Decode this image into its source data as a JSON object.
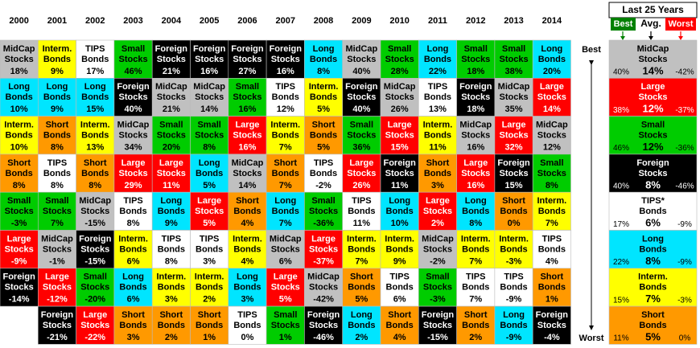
{
  "years": [
    "2000",
    "2001",
    "2002",
    "2003",
    "2004",
    "2005",
    "2006",
    "2007",
    "2008",
    "2009",
    "2010",
    "2011",
    "2012",
    "2013",
    "2014"
  ],
  "columns": [
    [
      {
        "t": [
          "MidCap",
          "Stocks"
        ],
        "r": "18%",
        "c": "#c0c0c0"
      },
      {
        "t": [
          "Long",
          "Bonds"
        ],
        "r": "10%",
        "c": "#00e5ff"
      },
      {
        "t": [
          "Interm.",
          "Bonds"
        ],
        "r": "10%",
        "c": "#ffff00"
      },
      {
        "t": [
          "Short",
          "Bonds"
        ],
        "r": "8%",
        "c": "#ff9900"
      },
      {
        "t": [
          "Small",
          "Stocks"
        ],
        "r": "-3%",
        "c": "#00cc00"
      },
      {
        "t": [
          "Large",
          "Stocks"
        ],
        "r": "-9%",
        "c": "#ff0000"
      },
      {
        "t": [
          "Foreign",
          "Stocks"
        ],
        "r": "-14%",
        "c": "#000000"
      },
      null
    ],
    [
      {
        "t": [
          "Interm.",
          "Bonds"
        ],
        "r": "9%",
        "c": "#ffff00"
      },
      {
        "t": [
          "Long",
          "Bonds"
        ],
        "r": "9%",
        "c": "#00e5ff"
      },
      {
        "t": [
          "Short",
          "Bonds"
        ],
        "r": "8%",
        "c": "#ff9900"
      },
      {
        "t": [
          "TIPS",
          "Bonds"
        ],
        "r": "8%",
        "c": "#ffffff"
      },
      {
        "t": [
          "Small",
          "Stocks"
        ],
        "r": "7%",
        "c": "#00cc00"
      },
      {
        "t": [
          "MidCap",
          "Stocks"
        ],
        "r": "-1%",
        "c": "#c0c0c0"
      },
      {
        "t": [
          "Large",
          "Stocks"
        ],
        "r": "-12%",
        "c": "#ff0000"
      },
      {
        "t": [
          "Foreign",
          "Stocks"
        ],
        "r": "-21%",
        "c": "#000000"
      }
    ],
    [
      {
        "t": [
          "TIPS",
          "Bonds"
        ],
        "r": "17%",
        "c": "#ffffff"
      },
      {
        "t": [
          "Long",
          "Bonds"
        ],
        "r": "15%",
        "c": "#00e5ff"
      },
      {
        "t": [
          "Interm.",
          "Bonds"
        ],
        "r": "13%",
        "c": "#ffff00"
      },
      {
        "t": [
          "Short",
          "Bonds"
        ],
        "r": "8%",
        "c": "#ff9900"
      },
      {
        "t": [
          "MidCap",
          "Stocks"
        ],
        "r": "-15%",
        "c": "#c0c0c0"
      },
      {
        "t": [
          "Foreign",
          "Stocks"
        ],
        "r": "-15%",
        "c": "#000000"
      },
      {
        "t": [
          "Small",
          "Stocks"
        ],
        "r": "-20%",
        "c": "#00cc00"
      },
      {
        "t": [
          "Large",
          "Stocks"
        ],
        "r": "-22%",
        "c": "#ff0000"
      }
    ],
    [
      {
        "t": [
          "Small",
          "Stocks"
        ],
        "r": "46%",
        "c": "#00cc00"
      },
      {
        "t": [
          "Foreign",
          "Stocks"
        ],
        "r": "40%",
        "c": "#000000"
      },
      {
        "t": [
          "MidCap",
          "Stocks"
        ],
        "r": "34%",
        "c": "#c0c0c0"
      },
      {
        "t": [
          "Large",
          "Stocks"
        ],
        "r": "29%",
        "c": "#ff0000"
      },
      {
        "t": [
          "TIPS",
          "Bonds"
        ],
        "r": "8%",
        "c": "#ffffff"
      },
      {
        "t": [
          "Interm.",
          "Bonds"
        ],
        "r": "6%",
        "c": "#ffff00"
      },
      {
        "t": [
          "Long",
          "Bonds"
        ],
        "r": "6%",
        "c": "#00e5ff"
      },
      {
        "t": [
          "Short",
          "Bonds"
        ],
        "r": "3%",
        "c": "#ff9900"
      }
    ],
    [
      {
        "t": [
          "Foreign",
          "Stocks"
        ],
        "r": "21%",
        "c": "#000000"
      },
      {
        "t": [
          "MidCap",
          "Stocks"
        ],
        "r": "21%",
        "c": "#c0c0c0"
      },
      {
        "t": [
          "Small",
          "Stocks"
        ],
        "r": "20%",
        "c": "#00cc00"
      },
      {
        "t": [
          "Large",
          "Stocks"
        ],
        "r": "11%",
        "c": "#ff0000"
      },
      {
        "t": [
          "Long",
          "Bonds"
        ],
        "r": "9%",
        "c": "#00e5ff"
      },
      {
        "t": [
          "TIPS",
          "Bonds"
        ],
        "r": "8%",
        "c": "#ffffff"
      },
      {
        "t": [
          "Interm.",
          "Bonds"
        ],
        "r": "3%",
        "c": "#ffff00"
      },
      {
        "t": [
          "Short",
          "Bonds"
        ],
        "r": "2%",
        "c": "#ff9900"
      }
    ],
    [
      {
        "t": [
          "Foreign",
          "Stocks"
        ],
        "r": "16%",
        "c": "#000000"
      },
      {
        "t": [
          "MidCap",
          "Stocks"
        ],
        "r": "14%",
        "c": "#c0c0c0"
      },
      {
        "t": [
          "Small",
          "Stocks"
        ],
        "r": "8%",
        "c": "#00cc00"
      },
      {
        "t": [
          "Long",
          "Bonds"
        ],
        "r": "5%",
        "c": "#00e5ff"
      },
      {
        "t": [
          "Large",
          "Stocks"
        ],
        "r": "5%",
        "c": "#ff0000"
      },
      {
        "t": [
          "TIPS",
          "Bonds"
        ],
        "r": "3%",
        "c": "#ffffff"
      },
      {
        "t": [
          "Interm.",
          "Bonds"
        ],
        "r": "2%",
        "c": "#ffff00"
      },
      {
        "t": [
          "Short",
          "Bonds"
        ],
        "r": "1%",
        "c": "#ff9900"
      }
    ],
    [
      {
        "t": [
          "Foreign",
          "Stocks"
        ],
        "r": "27%",
        "c": "#000000"
      },
      {
        "t": [
          "Small",
          "Stocks"
        ],
        "r": "16%",
        "c": "#00cc00"
      },
      {
        "t": [
          "Large",
          "Stocks"
        ],
        "r": "16%",
        "c": "#ff0000"
      },
      {
        "t": [
          "MidCap",
          "Stocks"
        ],
        "r": "14%",
        "c": "#c0c0c0"
      },
      {
        "t": [
          "Short",
          "Bonds"
        ],
        "r": "4%",
        "c": "#ff9900"
      },
      {
        "t": [
          "Interm.",
          "Bonds"
        ],
        "r": "4%",
        "c": "#ffff00"
      },
      {
        "t": [
          "Long",
          "Bonds"
        ],
        "r": "3%",
        "c": "#00e5ff"
      },
      {
        "t": [
          "TIPS",
          "Bonds"
        ],
        "r": "0%",
        "c": "#ffffff"
      }
    ],
    [
      {
        "t": [
          "Foreign",
          "Stocks"
        ],
        "r": "16%",
        "c": "#000000"
      },
      {
        "t": [
          "TIPS",
          "Bonds"
        ],
        "r": "12%",
        "c": "#ffffff"
      },
      {
        "t": [
          "Interm.",
          "Bonds"
        ],
        "r": "7%",
        "c": "#ffff00"
      },
      {
        "t": [
          "Short",
          "Bonds"
        ],
        "r": "7%",
        "c": "#ff9900"
      },
      {
        "t": [
          "Long",
          "Bonds"
        ],
        "r": "7%",
        "c": "#00e5ff"
      },
      {
        "t": [
          "MidCap",
          "Stocks"
        ],
        "r": "6%",
        "c": "#c0c0c0"
      },
      {
        "t": [
          "Large",
          "Stocks"
        ],
        "r": "5%",
        "c": "#ff0000"
      },
      {
        "t": [
          "Small",
          "Stocks"
        ],
        "r": "1%",
        "c": "#00cc00"
      }
    ],
    [
      {
        "t": [
          "Long",
          "Bonds"
        ],
        "r": "8%",
        "c": "#00e5ff"
      },
      {
        "t": [
          "Interm.",
          "Bonds"
        ],
        "r": "5%",
        "c": "#ffff00"
      },
      {
        "t": [
          "Short",
          "Bonds"
        ],
        "r": "5%",
        "c": "#ff9900"
      },
      {
        "t": [
          "TIPS",
          "Bonds"
        ],
        "r": "-2%",
        "c": "#ffffff"
      },
      {
        "t": [
          "Small",
          "Stocks"
        ],
        "r": "-36%",
        "c": "#00cc00"
      },
      {
        "t": [
          "Large",
          "Stocks"
        ],
        "r": "-37%",
        "c": "#ff0000"
      },
      {
        "t": [
          "MidCap",
          "Stocks"
        ],
        "r": "-42%",
        "c": "#c0c0c0"
      },
      {
        "t": [
          "Foreign",
          "Stocks"
        ],
        "r": "-46%",
        "c": "#000000"
      }
    ],
    [
      {
        "t": [
          "MidCap",
          "Stocks"
        ],
        "r": "40%",
        "c": "#c0c0c0"
      },
      {
        "t": [
          "Foreign",
          "Stocks"
        ],
        "r": "40%",
        "c": "#000000"
      },
      {
        "t": [
          "Small",
          "Stocks"
        ],
        "r": "36%",
        "c": "#00cc00"
      },
      {
        "t": [
          "Large",
          "Stocks"
        ],
        "r": "26%",
        "c": "#ff0000"
      },
      {
        "t": [
          "TIPS",
          "Bonds"
        ],
        "r": "11%",
        "c": "#ffffff"
      },
      {
        "t": [
          "Interm.",
          "Bonds"
        ],
        "r": "7%",
        "c": "#ffff00"
      },
      {
        "t": [
          "Short",
          "Bonds"
        ],
        "r": "5%",
        "c": "#ff9900"
      },
      {
        "t": [
          "Long",
          "Bonds"
        ],
        "r": "2%",
        "c": "#00e5ff"
      }
    ],
    [
      {
        "t": [
          "Small",
          "Stocks"
        ],
        "r": "28%",
        "c": "#00cc00"
      },
      {
        "t": [
          "MidCap",
          "Stocks"
        ],
        "r": "26%",
        "c": "#c0c0c0"
      },
      {
        "t": [
          "Large",
          "Stocks"
        ],
        "r": "15%",
        "c": "#ff0000"
      },
      {
        "t": [
          "Foreign",
          "Stocks"
        ],
        "r": "11%",
        "c": "#000000"
      },
      {
        "t": [
          "Long",
          "Bonds"
        ],
        "r": "10%",
        "c": "#00e5ff"
      },
      {
        "t": [
          "Interm.",
          "Bonds"
        ],
        "r": "9%",
        "c": "#ffff00"
      },
      {
        "t": [
          "TIPS",
          "Bonds"
        ],
        "r": "6%",
        "c": "#ffffff"
      },
      {
        "t": [
          "Short",
          "Bonds"
        ],
        "r": "4%",
        "c": "#ff9900"
      }
    ],
    [
      {
        "t": [
          "Long",
          "Bonds"
        ],
        "r": "22%",
        "c": "#00e5ff"
      },
      {
        "t": [
          "TIPS",
          "Bonds"
        ],
        "r": "13%",
        "c": "#ffffff"
      },
      {
        "t": [
          "Interm.",
          "Bonds"
        ],
        "r": "11%",
        "c": "#ffff00"
      },
      {
        "t": [
          "Short",
          "Bonds"
        ],
        "r": "3%",
        "c": "#ff9900"
      },
      {
        "t": [
          "Large",
          "Stocks"
        ],
        "r": "2%",
        "c": "#ff0000"
      },
      {
        "t": [
          "MidCap",
          "Stocks"
        ],
        "r": "-2%",
        "c": "#c0c0c0"
      },
      {
        "t": [
          "Small",
          "Stocks"
        ],
        "r": "-3%",
        "c": "#00cc00"
      },
      {
        "t": [
          "Foreign",
          "Stocks"
        ],
        "r": "-15%",
        "c": "#000000"
      }
    ],
    [
      {
        "t": [
          "Small",
          "Stocks"
        ],
        "r": "18%",
        "c": "#00cc00"
      },
      {
        "t": [
          "Foreign",
          "Stocks"
        ],
        "r": "18%",
        "c": "#000000"
      },
      {
        "t": [
          "MidCap",
          "Stocks"
        ],
        "r": "16%",
        "c": "#c0c0c0"
      },
      {
        "t": [
          "Large",
          "Stocks"
        ],
        "r": "16%",
        "c": "#ff0000"
      },
      {
        "t": [
          "Long",
          "Bonds"
        ],
        "r": "8%",
        "c": "#00e5ff"
      },
      {
        "t": [
          "Interm.",
          "Bonds"
        ],
        "r": "7%",
        "c": "#ffff00"
      },
      {
        "t": [
          "TIPS",
          "Bonds"
        ],
        "r": "7%",
        "c": "#ffffff"
      },
      {
        "t": [
          "Short",
          "Bonds"
        ],
        "r": "2%",
        "c": "#ff9900"
      }
    ],
    [
      {
        "t": [
          "Small",
          "Stocks"
        ],
        "r": "38%",
        "c": "#00cc00"
      },
      {
        "t": [
          "MidCap",
          "Stocks"
        ],
        "r": "35%",
        "c": "#c0c0c0"
      },
      {
        "t": [
          "Large",
          "Stocks"
        ],
        "r": "32%",
        "c": "#ff0000"
      },
      {
        "t": [
          "Foreign",
          "Stocks"
        ],
        "r": "15%",
        "c": "#000000"
      },
      {
        "t": [
          "Short",
          "Bonds"
        ],
        "r": "0%",
        "c": "#ff9900"
      },
      {
        "t": [
          "Interm.",
          "Bonds"
        ],
        "r": "-3%",
        "c": "#ffff00"
      },
      {
        "t": [
          "TIPS",
          "Bonds"
        ],
        "r": "-9%",
        "c": "#ffffff"
      },
      {
        "t": [
          "Long",
          "Bonds"
        ],
        "r": "-9%",
        "c": "#00e5ff"
      }
    ],
    [
      {
        "t": [
          "Long",
          "Bonds"
        ],
        "r": "20%",
        "c": "#00e5ff"
      },
      {
        "t": [
          "Large",
          "Stocks"
        ],
        "r": "14%",
        "c": "#ff0000"
      },
      {
        "t": [
          "MidCap",
          "Stocks"
        ],
        "r": "12%",
        "c": "#c0c0c0"
      },
      {
        "t": [
          "Small",
          "Stocks"
        ],
        "r": "8%",
        "c": "#00cc00"
      },
      {
        "t": [
          "Interm.",
          "Bonds"
        ],
        "r": "7%",
        "c": "#ffff00"
      },
      {
        "t": [
          "TIPS",
          "Bonds"
        ],
        "r": "4%",
        "c": "#ffffff"
      },
      {
        "t": [
          "Short",
          "Bonds"
        ],
        "r": "1%",
        "c": "#ff9900"
      },
      {
        "t": [
          "Foreign",
          "Stocks"
        ],
        "r": "-4%",
        "c": "#000000"
      }
    ]
  ],
  "rank_labels": {
    "best": "Best",
    "worst": "Worst"
  },
  "summary": {
    "title": "Last 25 Years",
    "best": "Best",
    "avg": "Avg.",
    "worst": "Worst",
    "best_color": "#008000",
    "worst_color": "#ff0000",
    "rows": [
      {
        "t": [
          "MidCap",
          "Stocks"
        ],
        "best": "40%",
        "avg": "14%",
        "worst": "-42%",
        "c": "#c0c0c0"
      },
      {
        "t": [
          "Large",
          "Stocks"
        ],
        "best": "38%",
        "avg": "12%",
        "worst": "-37%",
        "c": "#ff0000"
      },
      {
        "t": [
          "Small",
          "Stocks"
        ],
        "best": "46%",
        "avg": "12%",
        "worst": "-36%",
        "c": "#00cc00"
      },
      {
        "t": [
          "Foreign",
          "Stocks"
        ],
        "best": "40%",
        "avg": "8%",
        "worst": "-46%",
        "c": "#000000"
      },
      {
        "t": [
          "TIPS*",
          "Bonds"
        ],
        "best": "17%",
        "avg": "6%",
        "worst": "-9%",
        "c": "#ffffff"
      },
      {
        "t": [
          "Long",
          "Bonds"
        ],
        "best": "22%",
        "avg": "8%",
        "worst": "-9%",
        "c": "#00e5ff"
      },
      {
        "t": [
          "Interm.",
          "Bonds"
        ],
        "best": "15%",
        "avg": "7%",
        "worst": "-3%",
        "c": "#ffff00"
      },
      {
        "t": [
          "Short",
          "Bonds"
        ],
        "best": "11%",
        "avg": "5%",
        "worst": "0%",
        "c": "#ff9900"
      }
    ]
  }
}
